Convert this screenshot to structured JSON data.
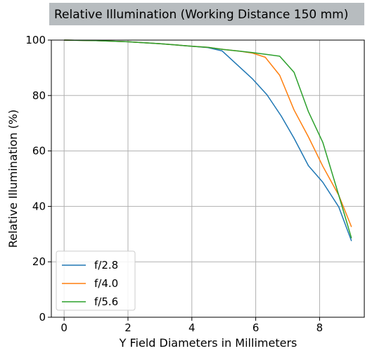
{
  "chart_data": {
    "type": "line",
    "title": "Relative Illumination (Working Distance 150 mm)",
    "xlabel": "Y Field Diameters in Millimeters",
    "ylabel": "Relative Illumination (%)",
    "xlim": [
      -0.4,
      9.4
    ],
    "ylim": [
      0,
      100
    ],
    "xticks": [
      0,
      2,
      4,
      6,
      8
    ],
    "yticks": [
      0,
      20,
      40,
      60,
      80,
      100
    ],
    "grid": true,
    "legend_position": "lower-left",
    "title_background": "#b7bcbf",
    "series": [
      {
        "name": "f/2.8",
        "color": "#1f77b4",
        "x": [
          0,
          1,
          2,
          3,
          4,
          4.5,
          4.95,
          5.4,
          5.9,
          6.35,
          6.8,
          7.2,
          7.65,
          8.1,
          8.6,
          9.0
        ],
        "y": [
          100,
          99.8,
          99.4,
          98.7,
          97.8,
          97.3,
          96.1,
          91.3,
          86.0,
          80.3,
          72.6,
          64.6,
          54.7,
          48.7,
          39.8,
          27.5
        ]
      },
      {
        "name": "f/4.0",
        "color": "#ff7f0e",
        "x": [
          0,
          1,
          2,
          3,
          4,
          4.5,
          5.0,
          5.5,
          5.9,
          6.3,
          6.75,
          7.2,
          7.65,
          8.1,
          8.6,
          9.0
        ],
        "y": [
          100,
          99.8,
          99.4,
          98.7,
          97.8,
          97.4,
          96.6,
          96.0,
          95.3,
          93.8,
          87.3,
          74.8,
          65.1,
          54.5,
          44.0,
          32.6
        ]
      },
      {
        "name": "f/5.6",
        "color": "#2ca02c",
        "x": [
          0,
          1,
          2,
          3,
          4,
          4.5,
          5.0,
          5.5,
          5.9,
          6.3,
          6.75,
          7.2,
          7.65,
          8.1,
          8.6,
          9.0
        ],
        "y": [
          100,
          99.8,
          99.4,
          98.7,
          97.8,
          97.4,
          96.6,
          96.0,
          95.5,
          94.9,
          94.2,
          88.4,
          74.2,
          63.1,
          44.0,
          28.5
        ]
      }
    ]
  }
}
